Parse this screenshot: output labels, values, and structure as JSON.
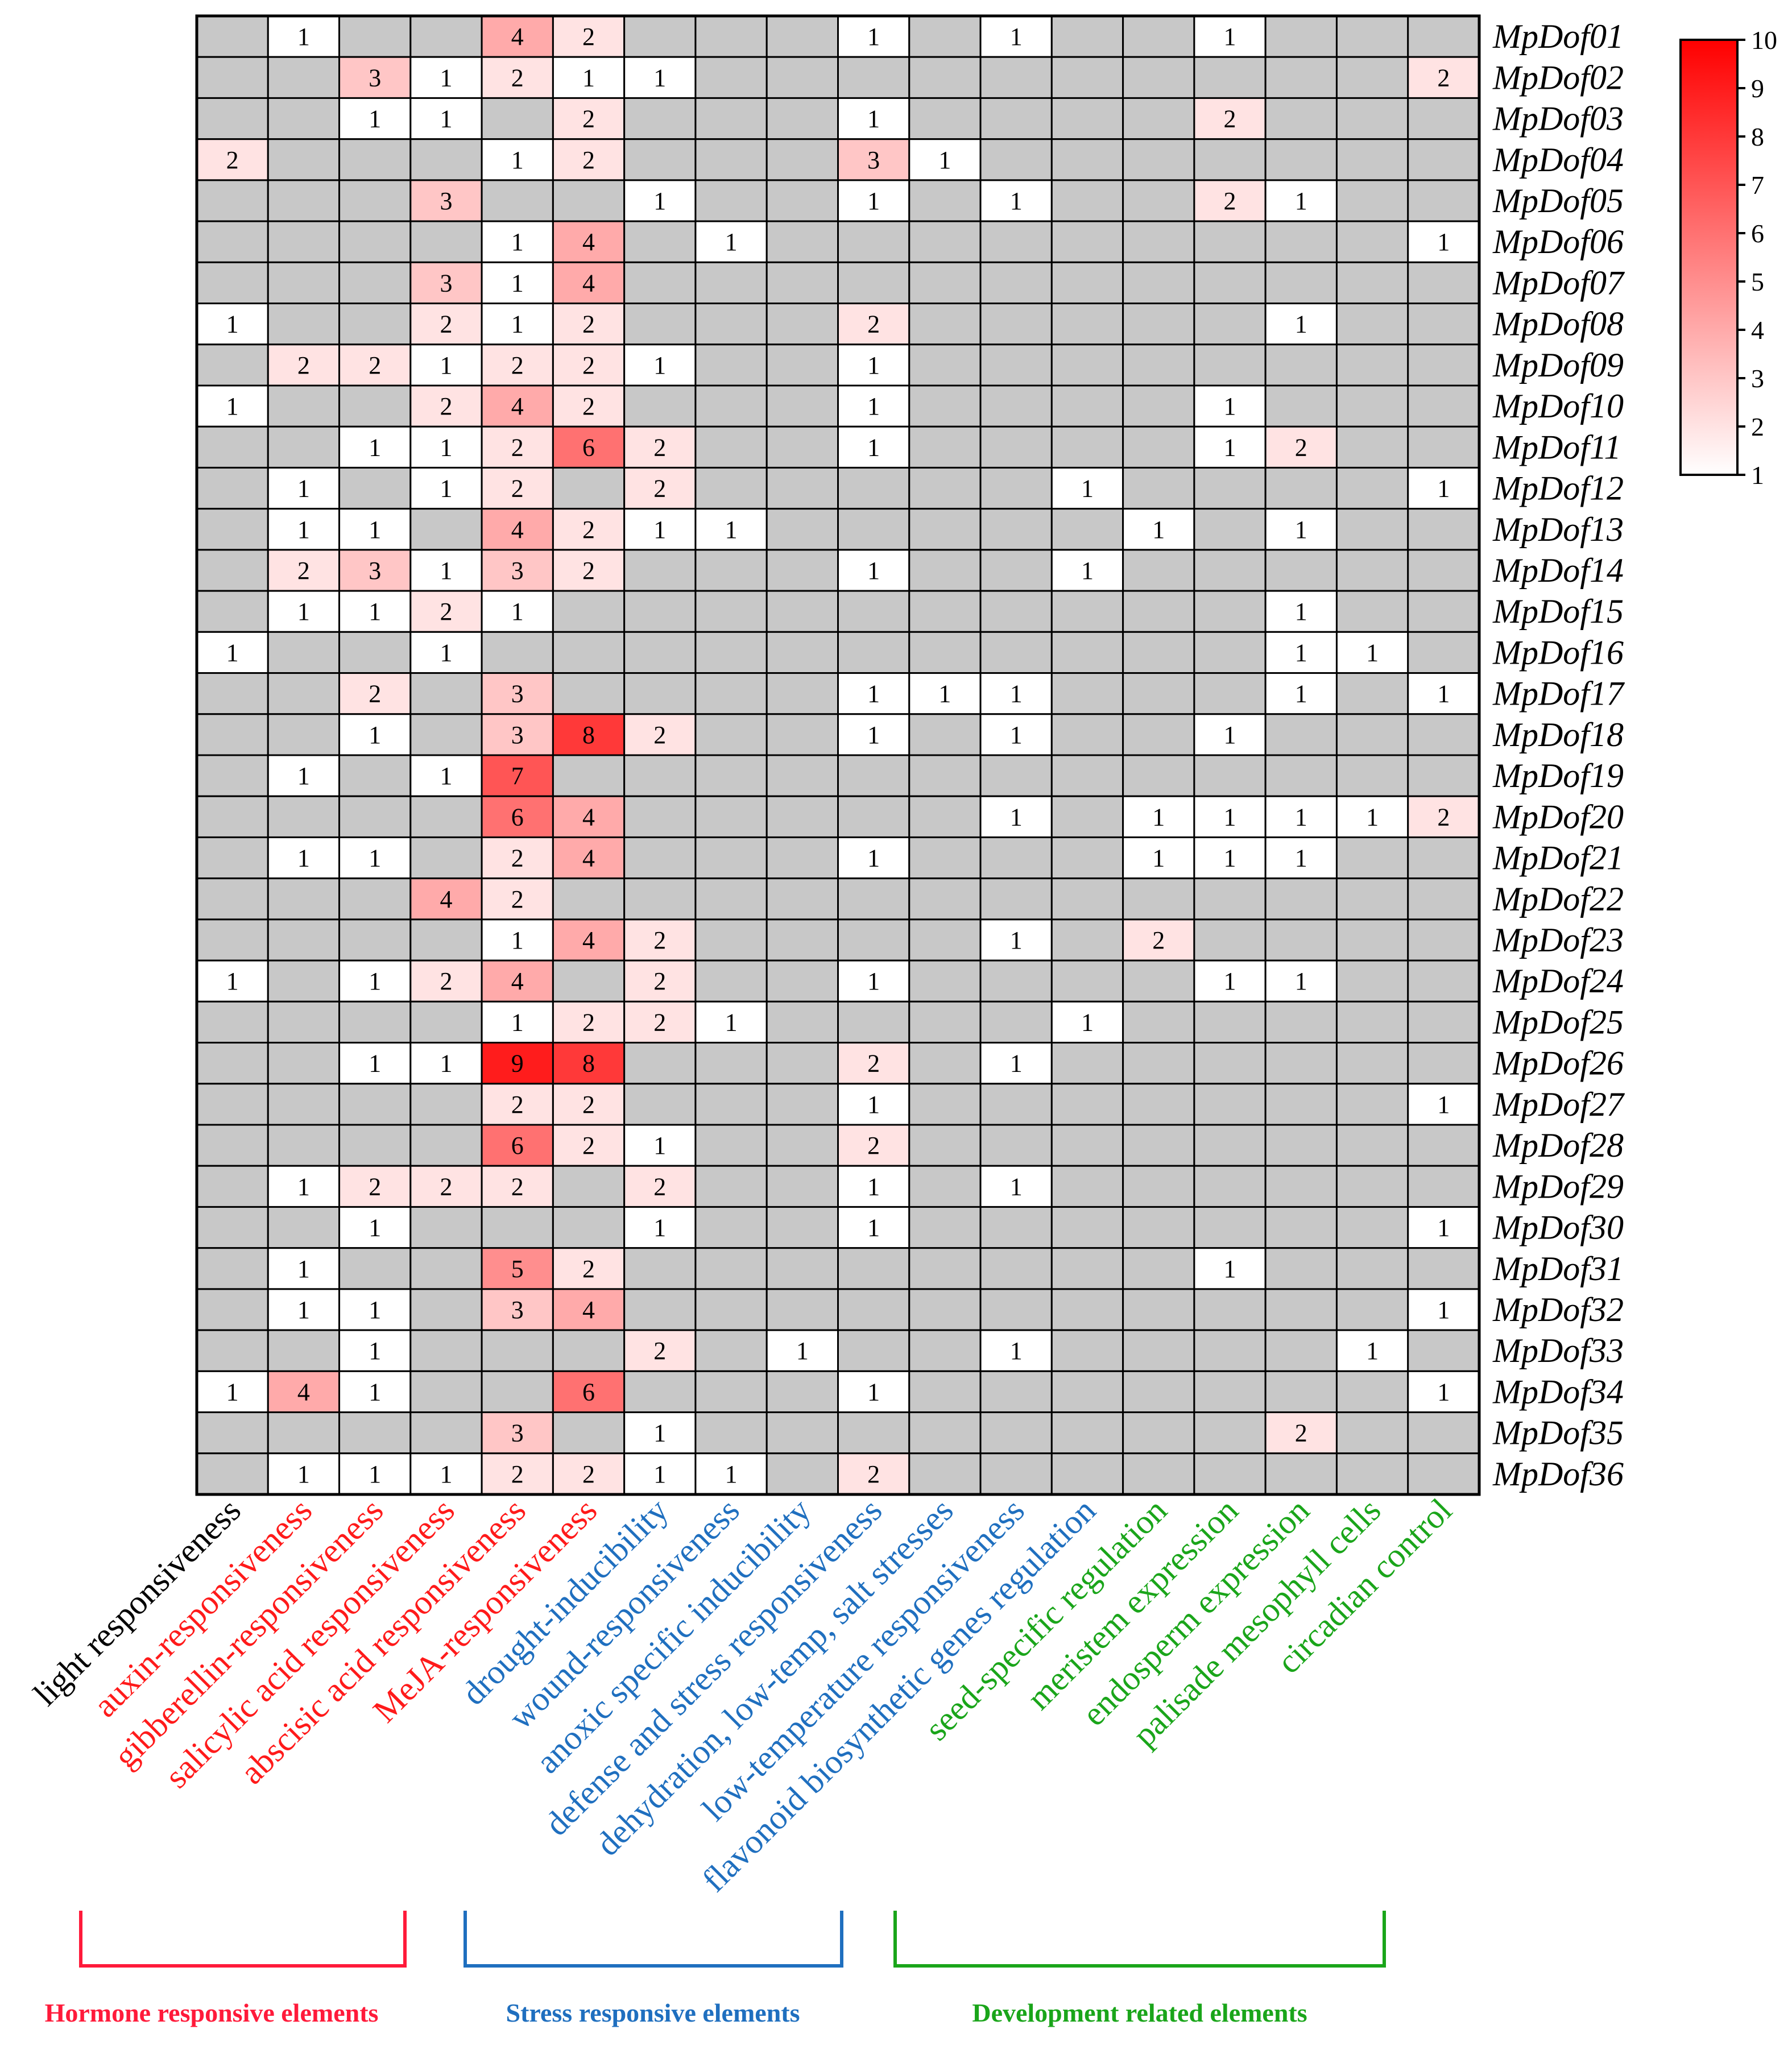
{
  "chart_data": {
    "type": "heatmap",
    "title": "",
    "rows": [
      "MpDof01",
      "MpDof02",
      "MpDof03",
      "MpDof04",
      "MpDof05",
      "MpDof06",
      "MpDof07",
      "MpDof08",
      "MpDof09",
      "MpDof10",
      "MpDof11",
      "MpDof12",
      "MpDof13",
      "MpDof14",
      "MpDof15",
      "MpDof16",
      "MpDof17",
      "MpDof18",
      "MpDof19",
      "MpDof20",
      "MpDof21",
      "MpDof22",
      "MpDof23",
      "MpDof24",
      "MpDof25",
      "MpDof26",
      "MpDof27",
      "MpDof28",
      "MpDof29",
      "MpDof30",
      "MpDof31",
      "MpDof32",
      "MpDof33",
      "MpDof34",
      "MpDof35",
      "MpDof36"
    ],
    "columns": [
      {
        "label": "light responsiveness",
        "group": "none"
      },
      {
        "label": "auxin-responsiveness",
        "group": "hormone"
      },
      {
        "label": "gibberellin-responsiveness",
        "group": "hormone"
      },
      {
        "label": "salicylic acid responsiveness",
        "group": "hormone"
      },
      {
        "label": "abscisic acid responsiveness",
        "group": "hormone"
      },
      {
        "label": "MeJA-responsiveness",
        "group": "hormone"
      },
      {
        "label": "drought-inducibility",
        "group": "stress"
      },
      {
        "label": "wound-responsiveness",
        "group": "stress"
      },
      {
        "label": "anoxic specific inducibility",
        "group": "stress"
      },
      {
        "label": "defense and stress responsiveness",
        "group": "stress"
      },
      {
        "label": "dehydration, low-temp, salt stresses",
        "group": "stress"
      },
      {
        "label": "low-temperature responsiveness",
        "group": "stress"
      },
      {
        "label": "flavonoid biosynthetic genes regulation",
        "group": "stress"
      },
      {
        "label": "seed-specific regulation",
        "group": "development"
      },
      {
        "label": "meristem expression",
        "group": "development"
      },
      {
        "label": "endosperm expression",
        "group": "development"
      },
      {
        "label": "palisade mesophyll cells",
        "group": "development"
      },
      {
        "label": "circadian control",
        "group": "development"
      }
    ],
    "values": [
      [
        0,
        1,
        0,
        0,
        4,
        2,
        0,
        0,
        0,
        1,
        0,
        1,
        0,
        0,
        1,
        0,
        0,
        0
      ],
      [
        0,
        0,
        3,
        1,
        2,
        1,
        1,
        0,
        0,
        0,
        0,
        0,
        0,
        0,
        0,
        0,
        0,
        2
      ],
      [
        0,
        0,
        1,
        1,
        0,
        2,
        0,
        0,
        0,
        1,
        0,
        0,
        0,
        0,
        2,
        0,
        0,
        0
      ],
      [
        2,
        0,
        0,
        0,
        1,
        2,
        0,
        0,
        0,
        3,
        1,
        0,
        0,
        0,
        0,
        0,
        0,
        0
      ],
      [
        0,
        0,
        0,
        3,
        0,
        0,
        1,
        0,
        0,
        1,
        0,
        1,
        0,
        0,
        2,
        1,
        0,
        0
      ],
      [
        0,
        0,
        0,
        0,
        1,
        4,
        0,
        1,
        0,
        0,
        0,
        0,
        0,
        0,
        0,
        0,
        0,
        1
      ],
      [
        0,
        0,
        0,
        3,
        1,
        4,
        0,
        0,
        0,
        0,
        0,
        0,
        0,
        0,
        0,
        0,
        0,
        0
      ],
      [
        1,
        0,
        0,
        2,
        1,
        2,
        0,
        0,
        0,
        2,
        0,
        0,
        0,
        0,
        0,
        1,
        0,
        0
      ],
      [
        0,
        2,
        2,
        1,
        2,
        2,
        1,
        0,
        0,
        1,
        0,
        0,
        0,
        0,
        0,
        0,
        0,
        0
      ],
      [
        1,
        0,
        0,
        2,
        4,
        2,
        0,
        0,
        0,
        1,
        0,
        0,
        0,
        0,
        1,
        0,
        0,
        0
      ],
      [
        0,
        0,
        1,
        1,
        2,
        6,
        2,
        0,
        0,
        1,
        0,
        0,
        0,
        0,
        1,
        2,
        0,
        0
      ],
      [
        0,
        1,
        0,
        1,
        2,
        0,
        2,
        0,
        0,
        0,
        0,
        0,
        1,
        0,
        0,
        0,
        0,
        1
      ],
      [
        0,
        1,
        1,
        0,
        4,
        2,
        1,
        1,
        0,
        0,
        0,
        0,
        0,
        1,
        0,
        1,
        0,
        0
      ],
      [
        0,
        2,
        3,
        1,
        3,
        2,
        0,
        0,
        0,
        1,
        0,
        0,
        1,
        0,
        0,
        0,
        0,
        0
      ],
      [
        0,
        1,
        1,
        2,
        1,
        0,
        0,
        0,
        0,
        0,
        0,
        0,
        0,
        0,
        0,
        1,
        0,
        0
      ],
      [
        1,
        0,
        0,
        1,
        0,
        0,
        0,
        0,
        0,
        0,
        0,
        0,
        0,
        0,
        0,
        1,
        1,
        0
      ],
      [
        0,
        0,
        2,
        0,
        3,
        0,
        0,
        0,
        0,
        1,
        1,
        1,
        0,
        0,
        0,
        1,
        0,
        1
      ],
      [
        0,
        0,
        1,
        0,
        3,
        8,
        2,
        0,
        0,
        1,
        0,
        1,
        0,
        0,
        1,
        0,
        0,
        0
      ],
      [
        0,
        1,
        0,
        1,
        7,
        0,
        0,
        0,
        0,
        0,
        0,
        0,
        0,
        0,
        0,
        0,
        0,
        0
      ],
      [
        0,
        0,
        0,
        0,
        6,
        4,
        0,
        0,
        0,
        0,
        0,
        1,
        0,
        1,
        1,
        1,
        1,
        2
      ],
      [
        0,
        1,
        1,
        0,
        2,
        4,
        0,
        0,
        0,
        1,
        0,
        0,
        0,
        1,
        1,
        1,
        0,
        0
      ],
      [
        0,
        0,
        0,
        4,
        2,
        0,
        0,
        0,
        0,
        0,
        0,
        0,
        0,
        0,
        0,
        0,
        0,
        0
      ],
      [
        0,
        0,
        0,
        0,
        1,
        4,
        2,
        0,
        0,
        0,
        0,
        1,
        0,
        2,
        0,
        0,
        0,
        0
      ],
      [
        1,
        0,
        1,
        2,
        4,
        0,
        2,
        0,
        0,
        1,
        0,
        0,
        0,
        0,
        1,
        1,
        0,
        0
      ],
      [
        0,
        0,
        0,
        0,
        1,
        2,
        2,
        1,
        0,
        0,
        0,
        0,
        1,
        0,
        0,
        0,
        0,
        0
      ],
      [
        0,
        0,
        1,
        1,
        9,
        8,
        0,
        0,
        0,
        2,
        0,
        1,
        0,
        0,
        0,
        0,
        0,
        0
      ],
      [
        0,
        0,
        0,
        0,
        2,
        2,
        0,
        0,
        0,
        1,
        0,
        0,
        0,
        0,
        0,
        0,
        0,
        1
      ],
      [
        0,
        0,
        0,
        0,
        6,
        2,
        1,
        0,
        0,
        2,
        0,
        0,
        0,
        0,
        0,
        0,
        0,
        0
      ],
      [
        0,
        1,
        2,
        2,
        2,
        0,
        2,
        0,
        0,
        1,
        0,
        1,
        0,
        0,
        0,
        0,
        0,
        0
      ],
      [
        0,
        0,
        1,
        0,
        0,
        0,
        1,
        0,
        0,
        1,
        0,
        0,
        0,
        0,
        0,
        0,
        0,
        1
      ],
      [
        0,
        1,
        0,
        0,
        5,
        2,
        0,
        0,
        0,
        0,
        0,
        0,
        0,
        0,
        1,
        0,
        0,
        0
      ],
      [
        0,
        1,
        1,
        0,
        3,
        4,
        0,
        0,
        0,
        0,
        0,
        0,
        0,
        0,
        0,
        0,
        0,
        1
      ],
      [
        0,
        0,
        1,
        0,
        0,
        0,
        2,
        0,
        1,
        0,
        0,
        1,
        0,
        0,
        0,
        0,
        1,
        0
      ],
      [
        1,
        4,
        1,
        0,
        0,
        6,
        0,
        0,
        0,
        1,
        0,
        0,
        0,
        0,
        0,
        0,
        0,
        1
      ],
      [
        0,
        0,
        0,
        0,
        3,
        0,
        1,
        0,
        0,
        0,
        0,
        0,
        0,
        0,
        0,
        2,
        0,
        0
      ],
      [
        0,
        1,
        1,
        1,
        2,
        2,
        1,
        1,
        0,
        2,
        0,
        0,
        0,
        0,
        0,
        0,
        0,
        0
      ]
    ],
    "zero_meaning": "absent (gray cell)",
    "color_scale": {
      "min": 1,
      "max": 10,
      "low_color": "#ffffff",
      "high_color": "#ff0000",
      "absent_color": "#c8c8c8"
    },
    "colorbar_ticks": [
      10,
      9,
      8,
      7,
      6,
      5,
      4,
      3,
      2,
      1
    ],
    "groups": [
      {
        "name": "Hormone responsive elements",
        "color": "#ff1a3a",
        "columns": [
          1,
          5
        ]
      },
      {
        "name": "Stress responsive elements",
        "color": "#1f6fbf",
        "columns": [
          6,
          12
        ]
      },
      {
        "name": "Development related elements",
        "color": "#1aa51a",
        "columns": [
          13,
          17
        ]
      }
    ],
    "colors": {
      "none": "#000000",
      "hormone": "#ff1a1a",
      "stress": "#1f6fbf",
      "development": "#1aa51a"
    }
  }
}
